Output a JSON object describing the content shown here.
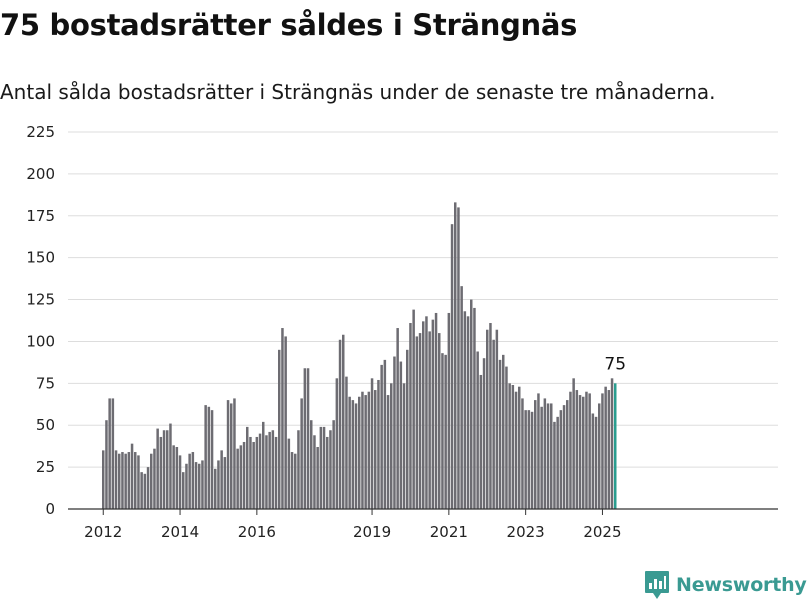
{
  "header": {
    "title": "75 bostadsrätter såldes i Strängnäs",
    "subtitle": "Antal sålda bostadsrätter i Strängnäs under de senaste tre månaderna."
  },
  "brand": {
    "name": "Newsworthy",
    "icon": "newsworthy-logo-icon",
    "color": "#3a9a92"
  },
  "chart_data": {
    "type": "bar",
    "title": "75 bostadsrätter såldes i Strängnäs",
    "subtitle": "Antal sålda bostadsrätter i Strängnäs under de senaste tre månaderna.",
    "xlabel": "",
    "ylabel": "",
    "ylim": [
      0,
      225
    ],
    "yticks": [
      0,
      25,
      50,
      75,
      100,
      125,
      150,
      175,
      200,
      225
    ],
    "grid": true,
    "start": "2012-01",
    "x_tick_labels": [
      "2012",
      "2014",
      "2016",
      "2019",
      "2021",
      "2023",
      "2025"
    ],
    "bar_color": "#6d6c72",
    "highlight_color": "#2a9d8f",
    "highlight_label": "75",
    "series": [
      {
        "values": [
          35,
          53,
          66,
          66,
          35,
          33,
          34,
          33,
          34,
          39,
          34,
          32,
          22,
          21,
          25,
          33,
          36,
          48,
          43,
          47,
          47,
          51,
          38,
          37,
          32,
          22,
          27,
          33,
          34,
          28,
          27,
          29,
          62,
          61,
          59,
          24,
          29,
          35,
          31,
          65,
          63,
          66,
          36,
          38,
          40,
          49,
          43,
          40,
          43,
          45,
          52,
          44,
          46,
          47,
          43,
          95,
          108,
          103,
          42,
          34,
          33,
          47,
          66,
          84,
          84,
          53,
          44,
          37,
          49,
          49,
          43,
          47,
          53,
          78,
          101,
          104,
          79,
          67,
          65,
          63,
          67,
          70,
          68,
          70,
          78,
          71,
          77,
          86,
          89,
          68,
          75,
          91,
          108,
          88,
          75,
          95,
          111,
          119,
          103,
          105,
          112,
          115,
          106,
          113,
          117,
          105,
          93,
          92,
          117,
          170,
          183,
          180,
          133,
          118,
          115,
          125,
          120,
          94,
          80,
          90,
          107,
          111,
          101,
          107,
          89,
          92,
          85,
          75,
          74,
          70,
          73,
          66,
          59,
          59,
          58,
          65,
          69,
          61,
          66,
          63,
          63,
          52,
          55,
          59,
          62,
          65,
          70,
          78,
          71,
          68,
          67,
          70,
          69,
          57,
          55,
          63,
          69,
          73,
          71,
          78,
          75
        ]
      }
    ]
  }
}
